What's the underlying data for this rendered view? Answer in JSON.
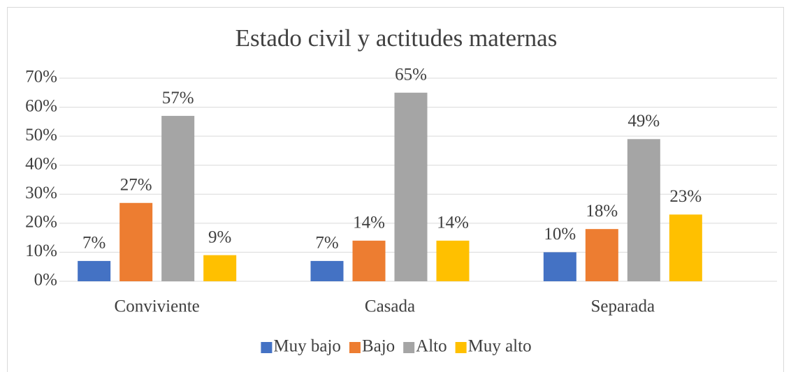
{
  "chart_data": {
    "type": "bar",
    "title": "Estado civil y actitudes maternas",
    "categories": [
      "Conviviente",
      "Casada",
      "Separada"
    ],
    "series": [
      {
        "name": "Muy bajo",
        "color": "#4472c4",
        "values": [
          7,
          7,
          10
        ],
        "value_labels": [
          "7%",
          "7%",
          "10%"
        ]
      },
      {
        "name": "Bajo",
        "color": "#ed7d31",
        "values": [
          27,
          14,
          18
        ],
        "value_labels": [
          "27%",
          "14%",
          "18%"
        ]
      },
      {
        "name": "Alto",
        "color": "#a5a5a5",
        "values": [
          57,
          65,
          49
        ],
        "value_labels": [
          "57%",
          "65%",
          "49%"
        ]
      },
      {
        "name": "Muy alto",
        "color": "#ffc000",
        "values": [
          9,
          14,
          23
        ],
        "value_labels": [
          "9%",
          "14%",
          "23%"
        ]
      }
    ],
    "ylim": [
      0,
      70
    ],
    "yticks": [
      {
        "value": 0,
        "label": "0%"
      },
      {
        "value": 10,
        "label": "10%"
      },
      {
        "value": 20,
        "label": "20%"
      },
      {
        "value": 30,
        "label": "30%"
      },
      {
        "value": 40,
        "label": "40%"
      },
      {
        "value": 50,
        "label": "50%"
      },
      {
        "value": 60,
        "label": "60%"
      },
      {
        "value": 70,
        "label": "70%"
      }
    ],
    "grid": true,
    "legend": "bottom"
  }
}
